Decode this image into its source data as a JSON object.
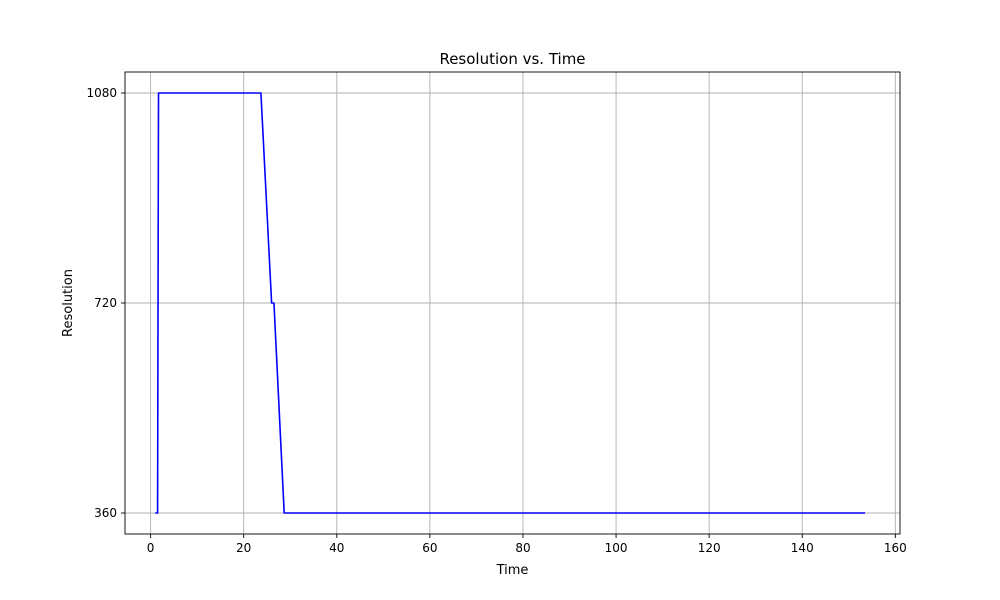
{
  "chart_data": {
    "type": "line",
    "title": "Resolution vs. Time",
    "xlabel": "Time",
    "ylabel": "Resolution",
    "xlim": [
      -5.5,
      161
    ],
    "ylim": [
      324,
      1116
    ],
    "xticks": [
      0,
      20,
      40,
      60,
      80,
      100,
      120,
      140,
      160
    ],
    "xtick_labels": [
      "0",
      "20",
      "40",
      "60",
      "80",
      "100",
      "120",
      "140",
      "160"
    ],
    "yticks": [
      360,
      720,
      1080
    ],
    "ytick_labels": [
      "360",
      "720",
      "1080"
    ],
    "grid": true,
    "series": [
      {
        "color": "#0000ff",
        "x": [
          1.0,
          1.5,
          1.7,
          23.7,
          26.0,
          26.5,
          28.7,
          153.5
        ],
        "y": [
          360,
          360,
          1080,
          1080,
          720,
          720,
          360,
          360
        ]
      }
    ]
  }
}
